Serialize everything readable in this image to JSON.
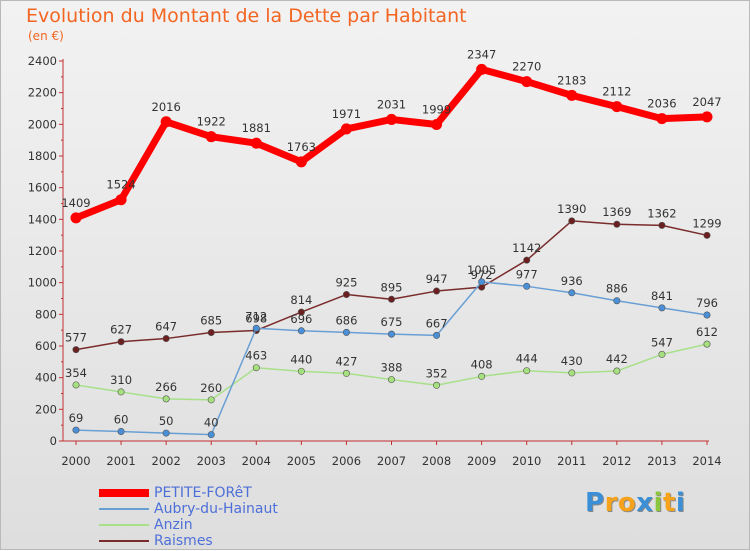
{
  "chart_data": {
    "type": "line",
    "title": "Evolution du Montant de la Dette par Habitant",
    "subtitle": "(en €)",
    "x": [
      "2000",
      "2001",
      "2002",
      "2003",
      "2004",
      "2005",
      "2006",
      "2007",
      "2008",
      "2009",
      "2010",
      "2011",
      "2012",
      "2013",
      "2014"
    ],
    "ylim": [
      0,
      2400
    ],
    "yticks": [
      0,
      200,
      400,
      600,
      800,
      1000,
      1200,
      1400,
      1600,
      1800,
      2000,
      2200,
      2400
    ],
    "grid": false,
    "legend_position": "bottom-left",
    "series": [
      {
        "name": "PETITE-FORêT",
        "color": "#ff0000",
        "marker_color": "#ff0000",
        "values": [
          1409,
          1524,
          2016,
          1922,
          1881,
          1763,
          1971,
          2031,
          1999,
          2347,
          2270,
          2183,
          2112,
          2036,
          2047
        ]
      },
      {
        "name": "Aubry-du-Hainaut",
        "color": "#6a9fd4",
        "marker_color": "#4a90d9",
        "values": [
          69,
          60,
          50,
          40,
          712,
          696,
          686,
          675,
          667,
          1005,
          977,
          936,
          886,
          841,
          796
        ]
      },
      {
        "name": "Anzin",
        "color": "#a8e08a",
        "marker_color": "#a6e07e",
        "values": [
          354,
          310,
          266,
          260,
          463,
          440,
          427,
          388,
          352,
          408,
          444,
          430,
          442,
          547,
          612
        ]
      },
      {
        "name": "Raismes",
        "color": "#7a2b2b",
        "marker_color": "#6b1f1f",
        "values": [
          577,
          627,
          647,
          685,
          698,
          814,
          925,
          895,
          947,
          972,
          1142,
          1390,
          1369,
          1362,
          1299
        ]
      }
    ]
  },
  "legend": {
    "items": [
      {
        "label": "PETITE-FORêT",
        "color": "#ff0000"
      },
      {
        "label": "Aubry-du-Hainaut",
        "color": "#6a9fd4"
      },
      {
        "label": "Anzin",
        "color": "#a8e08a"
      },
      {
        "label": "Raismes",
        "color": "#7a2b2b"
      }
    ]
  },
  "logo": {
    "letters": [
      "P",
      "r",
      "o",
      "x",
      "i",
      "t",
      "i"
    ],
    "colors": [
      "#3b8fd6",
      "#f7a21b",
      "#f7a21b",
      "#3b8fd6",
      "#8cc63e",
      "#f7a21b",
      "#3b8fd6"
    ]
  }
}
